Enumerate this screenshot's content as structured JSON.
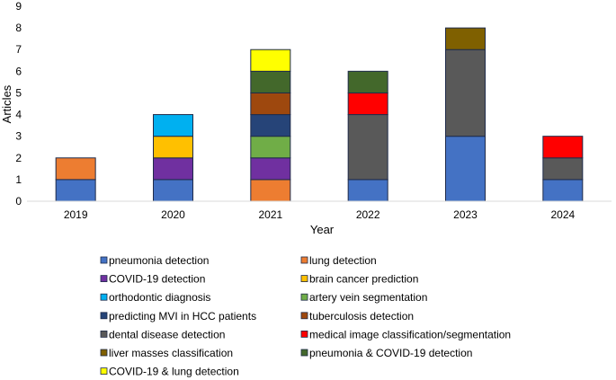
{
  "chart_data": {
    "type": "bar",
    "stacked": true,
    "title": "",
    "xlabel": "Year",
    "ylabel": "Articles",
    "ylim": [
      0,
      9
    ],
    "yticks": [
      0,
      1,
      2,
      3,
      4,
      5,
      6,
      7,
      8,
      9
    ],
    "grid": false,
    "legend_position": "bottom",
    "categories": [
      "2019",
      "2020",
      "2021",
      "2022",
      "2023",
      "2024"
    ],
    "series": [
      {
        "name": "pneumonia detection",
        "color": "#4472c4",
        "values": [
          1,
          1,
          0,
          1,
          3,
          1
        ]
      },
      {
        "name": "lung detection",
        "color": "#ed7d31",
        "values": [
          1,
          0,
          1,
          0,
          0,
          0
        ]
      },
      {
        "name": "COVID-19 detection",
        "color": "#7030a0",
        "values": [
          0,
          1,
          1,
          0,
          0,
          0
        ]
      },
      {
        "name": "brain cancer prediction",
        "color": "#ffc000",
        "values": [
          0,
          1,
          0,
          0,
          0,
          0
        ]
      },
      {
        "name": "orthodontic diagnosis",
        "color": "#00b0f0",
        "values": [
          0,
          1,
          0,
          0,
          0,
          0
        ]
      },
      {
        "name": "artery vein segmentation",
        "color": "#70ad47",
        "values": [
          0,
          0,
          1,
          0,
          0,
          0
        ]
      },
      {
        "name": "predicting MVI in HCC patients",
        "color": "#264478",
        "values": [
          0,
          0,
          1,
          0,
          0,
          0
        ]
      },
      {
        "name": "tuberculosis detection",
        "color": "#9e480e",
        "values": [
          0,
          0,
          1,
          0,
          0,
          0
        ]
      },
      {
        "name": "dental disease detection",
        "color": "#595959",
        "values": [
          0,
          0,
          0,
          3,
          4,
          1
        ]
      },
      {
        "name": "medical image classification/segmentation",
        "color": "#ff0000",
        "values": [
          0,
          0,
          0,
          1,
          0,
          1
        ]
      },
      {
        "name": "liver masses classification",
        "color": "#7f6000",
        "values": [
          0,
          0,
          0,
          0,
          1,
          0
        ]
      },
      {
        "name": "pneumonia & COVID-19 detection",
        "color": "#43682b",
        "values": [
          0,
          0,
          1,
          1,
          0,
          0
        ]
      },
      {
        "name": "COVID-19 & lung detection",
        "color": "#ffff00",
        "values": [
          0,
          0,
          1,
          0,
          0,
          0
        ]
      }
    ]
  }
}
